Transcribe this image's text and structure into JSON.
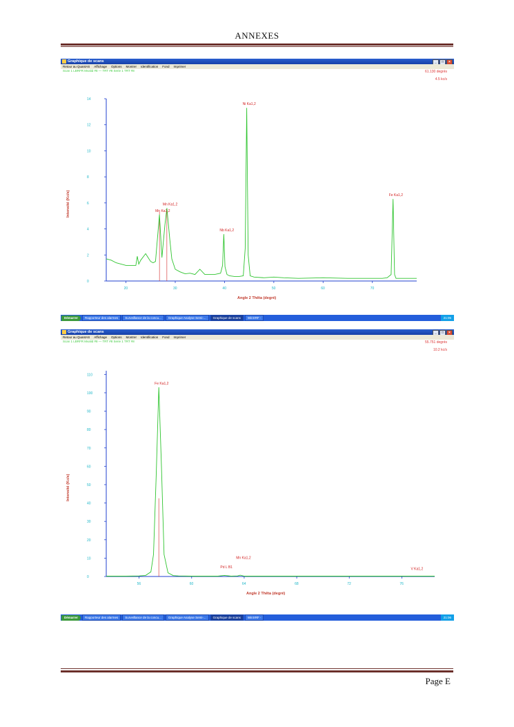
{
  "header": {
    "title": "ANNEXES"
  },
  "footer": {
    "page": "Page E"
  },
  "screenshots": [
    {
      "window_title": "Graphique de scans",
      "menu": [
        "Retour au QuantAS",
        "Affichage",
        "Options",
        "Montrer",
        "Identification",
        "Fond",
        "Imprimer"
      ],
      "status": "Scan 1 LBRFR  Mvalid #8  — TRT #8  Serie 1 TRT #8",
      "readout_angle": "61.130 degrés",
      "readout_rate": "4.5 kc/s",
      "taskbar": {
        "start": "Démarrer",
        "buttons": [
          "Rapporteur des alarmes",
          "Surveillance de la concu...",
          "Graphique Analyse Semi-...",
          "Graphique de scans",
          "WinXRF -"
        ],
        "active_index": 3,
        "clock": "21:05"
      },
      "chart_data": {
        "type": "line",
        "xlabel": "Angle 2 Thêta (degré)",
        "ylabel": "Intensité (Kc/s)",
        "x_ticks": [
          "20",
          "30",
          "40",
          "50",
          "60",
          "70"
        ],
        "y_ticks": [
          "0",
          "2",
          "4",
          "6",
          "8",
          "10",
          "12",
          "14"
        ],
        "xlim": [
          16,
          79
        ],
        "ylim": [
          0,
          14
        ],
        "series": [
          {
            "x": [
              16,
              17,
              18,
              20,
              22,
              22.3,
              22.6,
              23,
              24,
              24.5,
              25,
              25.5,
              26,
              26.8,
              27.3,
              27.9,
              28.3,
              28.9,
              29.3,
              30,
              31,
              32,
              33,
              34,
              35,
              36,
              38,
              39.2,
              39.6,
              39.85,
              40.1,
              40.5,
              41,
              42,
              43,
              43.8,
              44.2,
              44.5,
              44.8,
              45.2,
              46,
              48,
              50,
              52,
              55,
              60,
              65,
              70,
              72,
              73,
              73.8,
              74.2,
              74.5,
              74.8,
              75.3,
              76,
              77,
              78,
              79
            ],
            "y": [
              1.7,
              1.6,
              1.4,
              1.2,
              1.2,
              1.9,
              1.3,
              1.6,
              2.1,
              1.8,
              1.5,
              1.4,
              1.5,
              5.1,
              1.8,
              4.3,
              5.6,
              3.2,
              1.7,
              0.9,
              0.7,
              0.55,
              0.6,
              0.5,
              0.9,
              0.5,
              0.5,
              0.6,
              1.2,
              3.6,
              1.1,
              0.5,
              0.4,
              0.35,
              0.35,
              0.4,
              2.5,
              13.3,
              2.0,
              0.4,
              0.3,
              0.25,
              0.3,
              0.25,
              0.2,
              0.25,
              0.2,
              0.2,
              0.2,
              0.25,
              0.5,
              6.3,
              0.5,
              0.2,
              0.2,
              0.2,
              0.2,
              0.2,
              0.2
            ]
          }
        ],
        "annotations": [
          {
            "x": 26.8,
            "y": 5.1,
            "text": "Mn Ka1,2"
          },
          {
            "x": 28.3,
            "y": 5.6,
            "text": "Mn Ka1,2"
          },
          {
            "x": 39.85,
            "y": 3.6,
            "text": "Nb Ka1,2"
          },
          {
            "x": 44.5,
            "y": 13.3,
            "text": "Ni Ka1,2"
          },
          {
            "x": 74.2,
            "y": 6.3,
            "text": "Fe Ka1,2"
          }
        ],
        "markers_x": [
          26.8,
          28.3
        ],
        "colors": {
          "line": "#2ec42e",
          "axis": "#1f3fcf",
          "tick_label": "#19b5c7",
          "annotation": "#d22222",
          "marker": "#d22222"
        }
      }
    },
    {
      "window_title": "Graphique de scans",
      "menu": [
        "Retour au QuantAS",
        "Affichage",
        "Options",
        "Montrer",
        "Identification",
        "Fond",
        "Imprimer"
      ],
      "status": "Scan 1 LBRFR  Mvalid #8  — TRT #8  Serie 1 TRT #8",
      "readout_angle": "55.751 degrés",
      "readout_rate": "10.2 kc/s",
      "taskbar": {
        "start": "Démarrer",
        "buttons": [
          "Rapporteur des alarmes",
          "Surveillance de la concu...",
          "Graphique Analyse Semi-...",
          "Graphique de scans",
          "WinXRF -"
        ],
        "active_index": 3,
        "clock": "21:06"
      },
      "chart_data": {
        "type": "line",
        "xlabel": "Angle 2 Thêta (degré)",
        "ylabel": "Intensité (Kc/s)",
        "x_ticks": [
          "56",
          "60",
          "64",
          "68",
          "72",
          "76"
        ],
        "y_ticks": [
          "0",
          "10",
          "20",
          "30",
          "40",
          "50",
          "60",
          "70",
          "80",
          "90",
          "100",
          "110"
        ],
        "xlim": [
          53.5,
          78.5
        ],
        "ylim": [
          0,
          112
        ],
        "series": [
          {
            "x": [
              53.5,
              55,
              56,
              56.5,
              56.9,
              57.1,
              57.3,
              57.5,
              57.7,
              57.9,
              58.2,
              58.6,
              59,
              60,
              61,
              62,
              62.5,
              63,
              63.5,
              63.7,
              64,
              66,
              70,
              75,
              78.5
            ],
            "y": [
              0.2,
              0.2,
              0.3,
              0.6,
              2.5,
              12,
              55,
              103,
              60,
              12,
              2.0,
              0.5,
              0.3,
              0.2,
              0.2,
              0.2,
              0.6,
              0.2,
              0.3,
              0.7,
              0.2,
              0.2,
              0.2,
              0.2,
              0.2
            ]
          }
        ],
        "annotations": [
          {
            "x": 57.5,
            "y": 103,
            "text": "Fe Ka1,2"
          },
          {
            "x": 62.5,
            "y": 3,
            "text": "Pd L B1"
          },
          {
            "x": 63.7,
            "y": 8,
            "text": "Mn Ka1,2"
          },
          {
            "x": 77.0,
            "y": 2,
            "text": "V Ka1,2"
          }
        ],
        "markers_x": [
          57.5
        ],
        "colors": {
          "line": "#2ec42e",
          "axis": "#1f3fcf",
          "tick_label": "#19b5c7",
          "annotation": "#d22222",
          "marker": "#d22222"
        }
      }
    }
  ]
}
